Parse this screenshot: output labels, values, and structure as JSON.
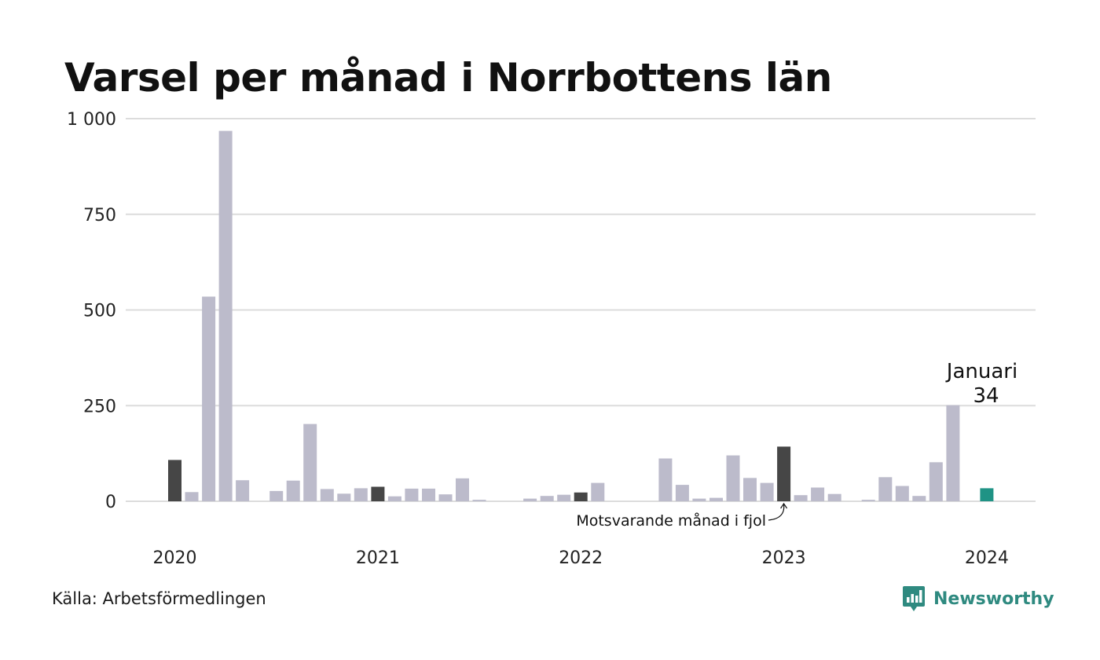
{
  "colors": {
    "bar_default": "#bcbbcb",
    "bar_same_month_last_year": "#464646",
    "bar_current": "#1f9385",
    "grid": "#dcdcdc",
    "brand": "#2f8a80"
  },
  "title": "Varsel per månad i Norrbottens län",
  "source": "Källa: Arbetsförmedlingen",
  "brand": {
    "name": "Newsworthy",
    "icon": "bar-chart-logo-icon"
  },
  "annotation": {
    "text": "Motsvarande månad i fjol"
  },
  "highlight": {
    "month_label": "Januari",
    "value_label": "34"
  },
  "chart_data": {
    "type": "bar",
    "title": "Varsel per månad i Norrbottens län",
    "xlabel": "",
    "ylabel": "",
    "ylim": [
      0,
      1000
    ],
    "yticks": [
      0,
      250,
      500,
      750,
      1000
    ],
    "ytick_labels": [
      "0",
      "250",
      "500",
      "750",
      "1 000"
    ],
    "grid": true,
    "legend": "none",
    "year_labels": [
      "2020",
      "2021",
      "2022",
      "2023",
      "2024"
    ],
    "months": [
      {
        "period": "2020-01",
        "value": 108,
        "kind": "same_month"
      },
      {
        "period": "2020-02",
        "value": 24,
        "kind": "default"
      },
      {
        "period": "2020-03",
        "value": 535,
        "kind": "default"
      },
      {
        "period": "2020-04",
        "value": 968,
        "kind": "default"
      },
      {
        "period": "2020-05",
        "value": 55,
        "kind": "default"
      },
      {
        "period": "2020-06",
        "value": 0,
        "kind": "default"
      },
      {
        "period": "2020-07",
        "value": 27,
        "kind": "default"
      },
      {
        "period": "2020-08",
        "value": 54,
        "kind": "default"
      },
      {
        "period": "2020-09",
        "value": 202,
        "kind": "default"
      },
      {
        "period": "2020-10",
        "value": 32,
        "kind": "default"
      },
      {
        "period": "2020-11",
        "value": 20,
        "kind": "default"
      },
      {
        "period": "2020-12",
        "value": 34,
        "kind": "default"
      },
      {
        "period": "2021-01",
        "value": 38,
        "kind": "same_month"
      },
      {
        "period": "2021-02",
        "value": 13,
        "kind": "default"
      },
      {
        "period": "2021-03",
        "value": 33,
        "kind": "default"
      },
      {
        "period": "2021-04",
        "value": 33,
        "kind": "default"
      },
      {
        "period": "2021-05",
        "value": 18,
        "kind": "default"
      },
      {
        "period": "2021-06",
        "value": 60,
        "kind": "default"
      },
      {
        "period": "2021-07",
        "value": 4,
        "kind": "default"
      },
      {
        "period": "2021-08",
        "value": 0,
        "kind": "default"
      },
      {
        "period": "2021-09",
        "value": 0,
        "kind": "default"
      },
      {
        "period": "2021-10",
        "value": 7,
        "kind": "default"
      },
      {
        "period": "2021-11",
        "value": 14,
        "kind": "default"
      },
      {
        "period": "2021-12",
        "value": 17,
        "kind": "default"
      },
      {
        "period": "2022-01",
        "value": 23,
        "kind": "same_month"
      },
      {
        "period": "2022-02",
        "value": 48,
        "kind": "default"
      },
      {
        "period": "2022-03",
        "value": 0,
        "kind": "default"
      },
      {
        "period": "2022-04",
        "value": 0,
        "kind": "default"
      },
      {
        "period": "2022-05",
        "value": 0,
        "kind": "default"
      },
      {
        "period": "2022-06",
        "value": 112,
        "kind": "default"
      },
      {
        "period": "2022-07",
        "value": 43,
        "kind": "default"
      },
      {
        "period": "2022-08",
        "value": 7,
        "kind": "default"
      },
      {
        "period": "2022-09",
        "value": 9,
        "kind": "default"
      },
      {
        "period": "2022-10",
        "value": 120,
        "kind": "default"
      },
      {
        "period": "2022-11",
        "value": 61,
        "kind": "default"
      },
      {
        "period": "2022-12",
        "value": 48,
        "kind": "default"
      },
      {
        "period": "2023-01",
        "value": 143,
        "kind": "same_month"
      },
      {
        "period": "2023-02",
        "value": 16,
        "kind": "default"
      },
      {
        "period": "2023-03",
        "value": 36,
        "kind": "default"
      },
      {
        "period": "2023-04",
        "value": 19,
        "kind": "default"
      },
      {
        "period": "2023-05",
        "value": 0,
        "kind": "default"
      },
      {
        "period": "2023-06",
        "value": 4,
        "kind": "default"
      },
      {
        "period": "2023-07",
        "value": 63,
        "kind": "default"
      },
      {
        "period": "2023-08",
        "value": 40,
        "kind": "default"
      },
      {
        "period": "2023-09",
        "value": 14,
        "kind": "default"
      },
      {
        "period": "2023-10",
        "value": 102,
        "kind": "default"
      },
      {
        "period": "2023-11",
        "value": 251,
        "kind": "default"
      },
      {
        "period": "2023-12",
        "value": 0,
        "kind": "default"
      },
      {
        "period": "2024-01",
        "value": 34,
        "kind": "current"
      }
    ]
  }
}
